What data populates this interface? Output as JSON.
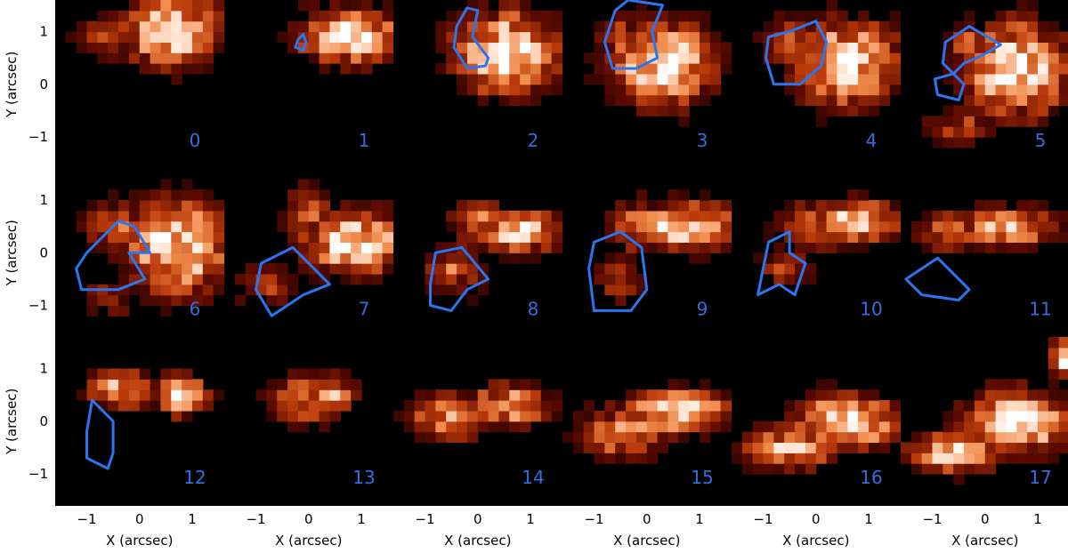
{
  "chart_data": {
    "type": "heatmap",
    "panel_count": 18,
    "grid": {
      "rows": 3,
      "cols": 6
    },
    "frames": [
      "0",
      "1",
      "2",
      "3",
      "4",
      "5",
      "6",
      "7",
      "8",
      "9",
      "10",
      "11",
      "12",
      "13",
      "14",
      "15",
      "16",
      "17"
    ],
    "xlabel": "X (arcsec)",
    "ylabel": "Y (arcsec)",
    "x_ticks": [
      "−1",
      "0",
      "1"
    ],
    "y_ticks": [
      "1",
      "0",
      "−1"
    ],
    "xlim": [
      -1.6,
      1.6
    ],
    "ylim": [
      -1.6,
      1.6
    ],
    "colormap": [
      "#000000",
      "#5a0a00",
      "#b93a0a",
      "#f08a4a",
      "#ffd8c0",
      "#ffffff"
    ],
    "contour_color": "#2a76f0",
    "label_color": "#2f6fe0",
    "blobs": [
      [
        [
          0.6,
          1.0,
          0.9,
          0.7,
          1.0
        ],
        [
          -0.6,
          0.9,
          0.6,
          0.5,
          0.4
        ]
      ],
      [
        [
          0.8,
          0.9,
          1.0,
          0.5,
          1.0
        ],
        [
          0.1,
          1.0,
          0.3,
          0.6,
          0.5
        ]
      ],
      [
        [
          0.5,
          0.6,
          1.0,
          0.8,
          1.0
        ],
        [
          -0.4,
          0.9,
          0.5,
          0.4,
          0.4
        ]
      ],
      [
        [
          0.3,
          0.4,
          1.0,
          0.8,
          1.0
        ],
        [
          -0.5,
          0.9,
          0.5,
          0.5,
          0.4
        ]
      ],
      [
        [
          0.6,
          0.4,
          1.0,
          0.8,
          1.0
        ],
        [
          -0.5,
          0.8,
          0.6,
          0.6,
          0.4
        ]
      ],
      [
        [
          0.6,
          0.3,
          1.0,
          0.9,
          1.0
        ],
        [
          -0.3,
          0.7,
          0.4,
          0.5,
          0.6
        ],
        [
          -0.5,
          -0.8,
          0.7,
          0.4,
          0.4
        ]
      ],
      [
        [
          0.7,
          0.1,
          1.0,
          0.9,
          1.0
        ],
        [
          -0.4,
          0.5,
          0.7,
          0.5,
          0.5
        ],
        [
          -0.6,
          -0.9,
          0.6,
          0.4,
          0.3
        ]
      ],
      [
        [
          0.9,
          0.2,
          1.0,
          0.6,
          1.0
        ],
        [
          0.0,
          0.8,
          0.5,
          0.5,
          0.5
        ],
        [
          -0.8,
          -0.6,
          0.7,
          0.4,
          0.4
        ]
      ],
      [
        [
          0.8,
          0.4,
          0.8,
          0.4,
          0.9
        ],
        [
          0.0,
          0.6,
          0.6,
          0.4,
          0.6
        ],
        [
          -0.4,
          -0.3,
          0.6,
          0.5,
          0.5
        ]
      ],
      [
        [
          0.7,
          0.5,
          1.0,
          0.5,
          0.9
        ],
        [
          -0.1,
          0.5,
          0.6,
          0.5,
          0.6
        ],
        [
          -0.5,
          -0.5,
          0.5,
          0.5,
          0.4
        ]
      ],
      [
        [
          0.8,
          0.6,
          0.8,
          0.4,
          0.9
        ],
        [
          0.0,
          0.5,
          0.8,
          0.5,
          0.5
        ],
        [
          -0.6,
          -0.3,
          0.5,
          0.4,
          0.4
        ]
      ],
      [
        [
          0.4,
          0.5,
          1.0,
          0.4,
          0.8
        ],
        [
          -0.7,
          0.4,
          0.6,
          0.4,
          0.5
        ]
      ],
      [
        [
          0.8,
          0.5,
          0.5,
          0.4,
          0.9
        ],
        [
          -0.3,
          0.6,
          0.7,
          0.4,
          0.7
        ]
      ],
      [
        [
          0.4,
          0.5,
          0.5,
          0.4,
          0.7
        ],
        [
          -0.1,
          0.4,
          0.7,
          0.5,
          0.6
        ]
      ],
      [
        [
          0.6,
          0.3,
          0.8,
          0.4,
          0.8
        ],
        [
          -0.6,
          0.1,
          0.8,
          0.5,
          0.6
        ]
      ],
      [
        [
          0.6,
          0.2,
          1.0,
          0.4,
          1.0
        ],
        [
          -0.4,
          -0.2,
          0.9,
          0.5,
          0.7
        ]
      ],
      [
        [
          0.6,
          0.0,
          1.0,
          0.5,
          1.0
        ],
        [
          -0.5,
          -0.5,
          0.9,
          0.4,
          0.8
        ]
      ],
      [
        [
          0.6,
          0.0,
          1.0,
          0.6,
          1.0
        ],
        [
          -0.6,
          -0.6,
          0.9,
          0.4,
          0.8
        ],
        [
          1.5,
          1.2,
          0.3,
          0.4,
          0.9
        ]
      ]
    ],
    "contours": [
      null,
      [
        [
          -0.2,
          0.85
        ],
        [
          -0.1,
          0.95
        ],
        [
          -0.05,
          0.8
        ],
        [
          -0.1,
          0.65
        ],
        [
          -0.25,
          0.7
        ]
      ],
      [
        [
          -0.4,
          1.1
        ],
        [
          -0.2,
          1.45
        ],
        [
          0.0,
          1.4
        ],
        [
          -0.1,
          0.9
        ],
        [
          0.2,
          0.5
        ],
        [
          0.15,
          0.35
        ],
        [
          -0.2,
          0.3
        ],
        [
          -0.45,
          0.7
        ]
      ],
      [
        [
          -0.6,
          1.4
        ],
        [
          -0.35,
          1.6
        ],
        [
          0.3,
          1.5
        ],
        [
          0.1,
          1.0
        ],
        [
          0.2,
          0.5
        ],
        [
          -0.2,
          0.3
        ],
        [
          -0.65,
          0.3
        ],
        [
          -0.8,
          0.8
        ]
      ],
      [
        [
          -0.9,
          0.9
        ],
        [
          -0.5,
          1.0
        ],
        [
          0.0,
          1.2
        ],
        [
          0.2,
          0.8
        ],
        [
          0.1,
          0.35
        ],
        [
          -0.3,
          0.0
        ],
        [
          -0.8,
          0.0
        ],
        [
          -0.95,
          0.5
        ]
      ],
      [
        [
          -0.75,
          0.8
        ],
        [
          -0.3,
          1.1
        ],
        [
          0.3,
          0.75
        ],
        [
          -0.05,
          0.55
        ],
        [
          -0.4,
          0.4
        ],
        [
          -0.6,
          0.2
        ],
        [
          -0.95,
          0.1
        ],
        [
          -0.9,
          -0.2
        ],
        [
          -0.5,
          -0.3
        ],
        [
          -0.4,
          0.0
        ],
        [
          -0.8,
          0.4
        ]
      ],
      [
        [
          -1.0,
          0.0
        ],
        [
          -0.4,
          0.6
        ],
        [
          -0.1,
          0.5
        ],
        [
          0.2,
          0.0
        ],
        [
          -0.2,
          0.0
        ],
        [
          0.1,
          -0.5
        ],
        [
          -0.4,
          -0.7
        ],
        [
          -1.1,
          -0.7
        ],
        [
          -1.2,
          -0.3
        ]
      ],
      [
        [
          -0.9,
          -0.2
        ],
        [
          -0.3,
          0.1
        ],
        [
          0.4,
          -0.6
        ],
        [
          -0.1,
          -0.8
        ],
        [
          -0.7,
          -1.2
        ],
        [
          -1.0,
          -0.7
        ]
      ],
      [
        [
          -0.8,
          0.0
        ],
        [
          -0.3,
          0.1
        ],
        [
          0.2,
          -0.5
        ],
        [
          -0.2,
          -0.7
        ],
        [
          -0.5,
          -1.1
        ],
        [
          -0.9,
          -1.0
        ],
        [
          -0.9,
          -0.6
        ]
      ],
      [
        [
          -1.0,
          0.2
        ],
        [
          -0.5,
          0.4
        ],
        [
          -0.1,
          0.1
        ],
        [
          0.0,
          -0.7
        ],
        [
          -0.3,
          -1.1
        ],
        [
          -1.0,
          -1.1
        ],
        [
          -1.1,
          -0.3
        ]
      ],
      [
        [
          -0.9,
          0.2
        ],
        [
          -0.5,
          0.4
        ],
        [
          -0.5,
          0.0
        ],
        [
          -0.2,
          -0.2
        ],
        [
          -0.4,
          -0.8
        ],
        [
          -0.7,
          -0.6
        ],
        [
          -1.1,
          -0.8
        ],
        [
          -1.0,
          -0.3
        ]
      ],
      [
        [
          -1.5,
          -0.5
        ],
        [
          -0.9,
          -0.1
        ],
        [
          -0.3,
          -0.7
        ],
        [
          -0.5,
          -0.9
        ],
        [
          -1.2,
          -0.8
        ]
      ],
      [
        [
          -0.9,
          0.4
        ],
        [
          -0.5,
          0.0
        ],
        [
          -0.5,
          -0.6
        ],
        [
          -0.6,
          -0.9
        ],
        [
          -1.0,
          -0.7
        ],
        [
          -1.0,
          -0.2
        ]
      ],
      null,
      null,
      null,
      null,
      null
    ]
  }
}
